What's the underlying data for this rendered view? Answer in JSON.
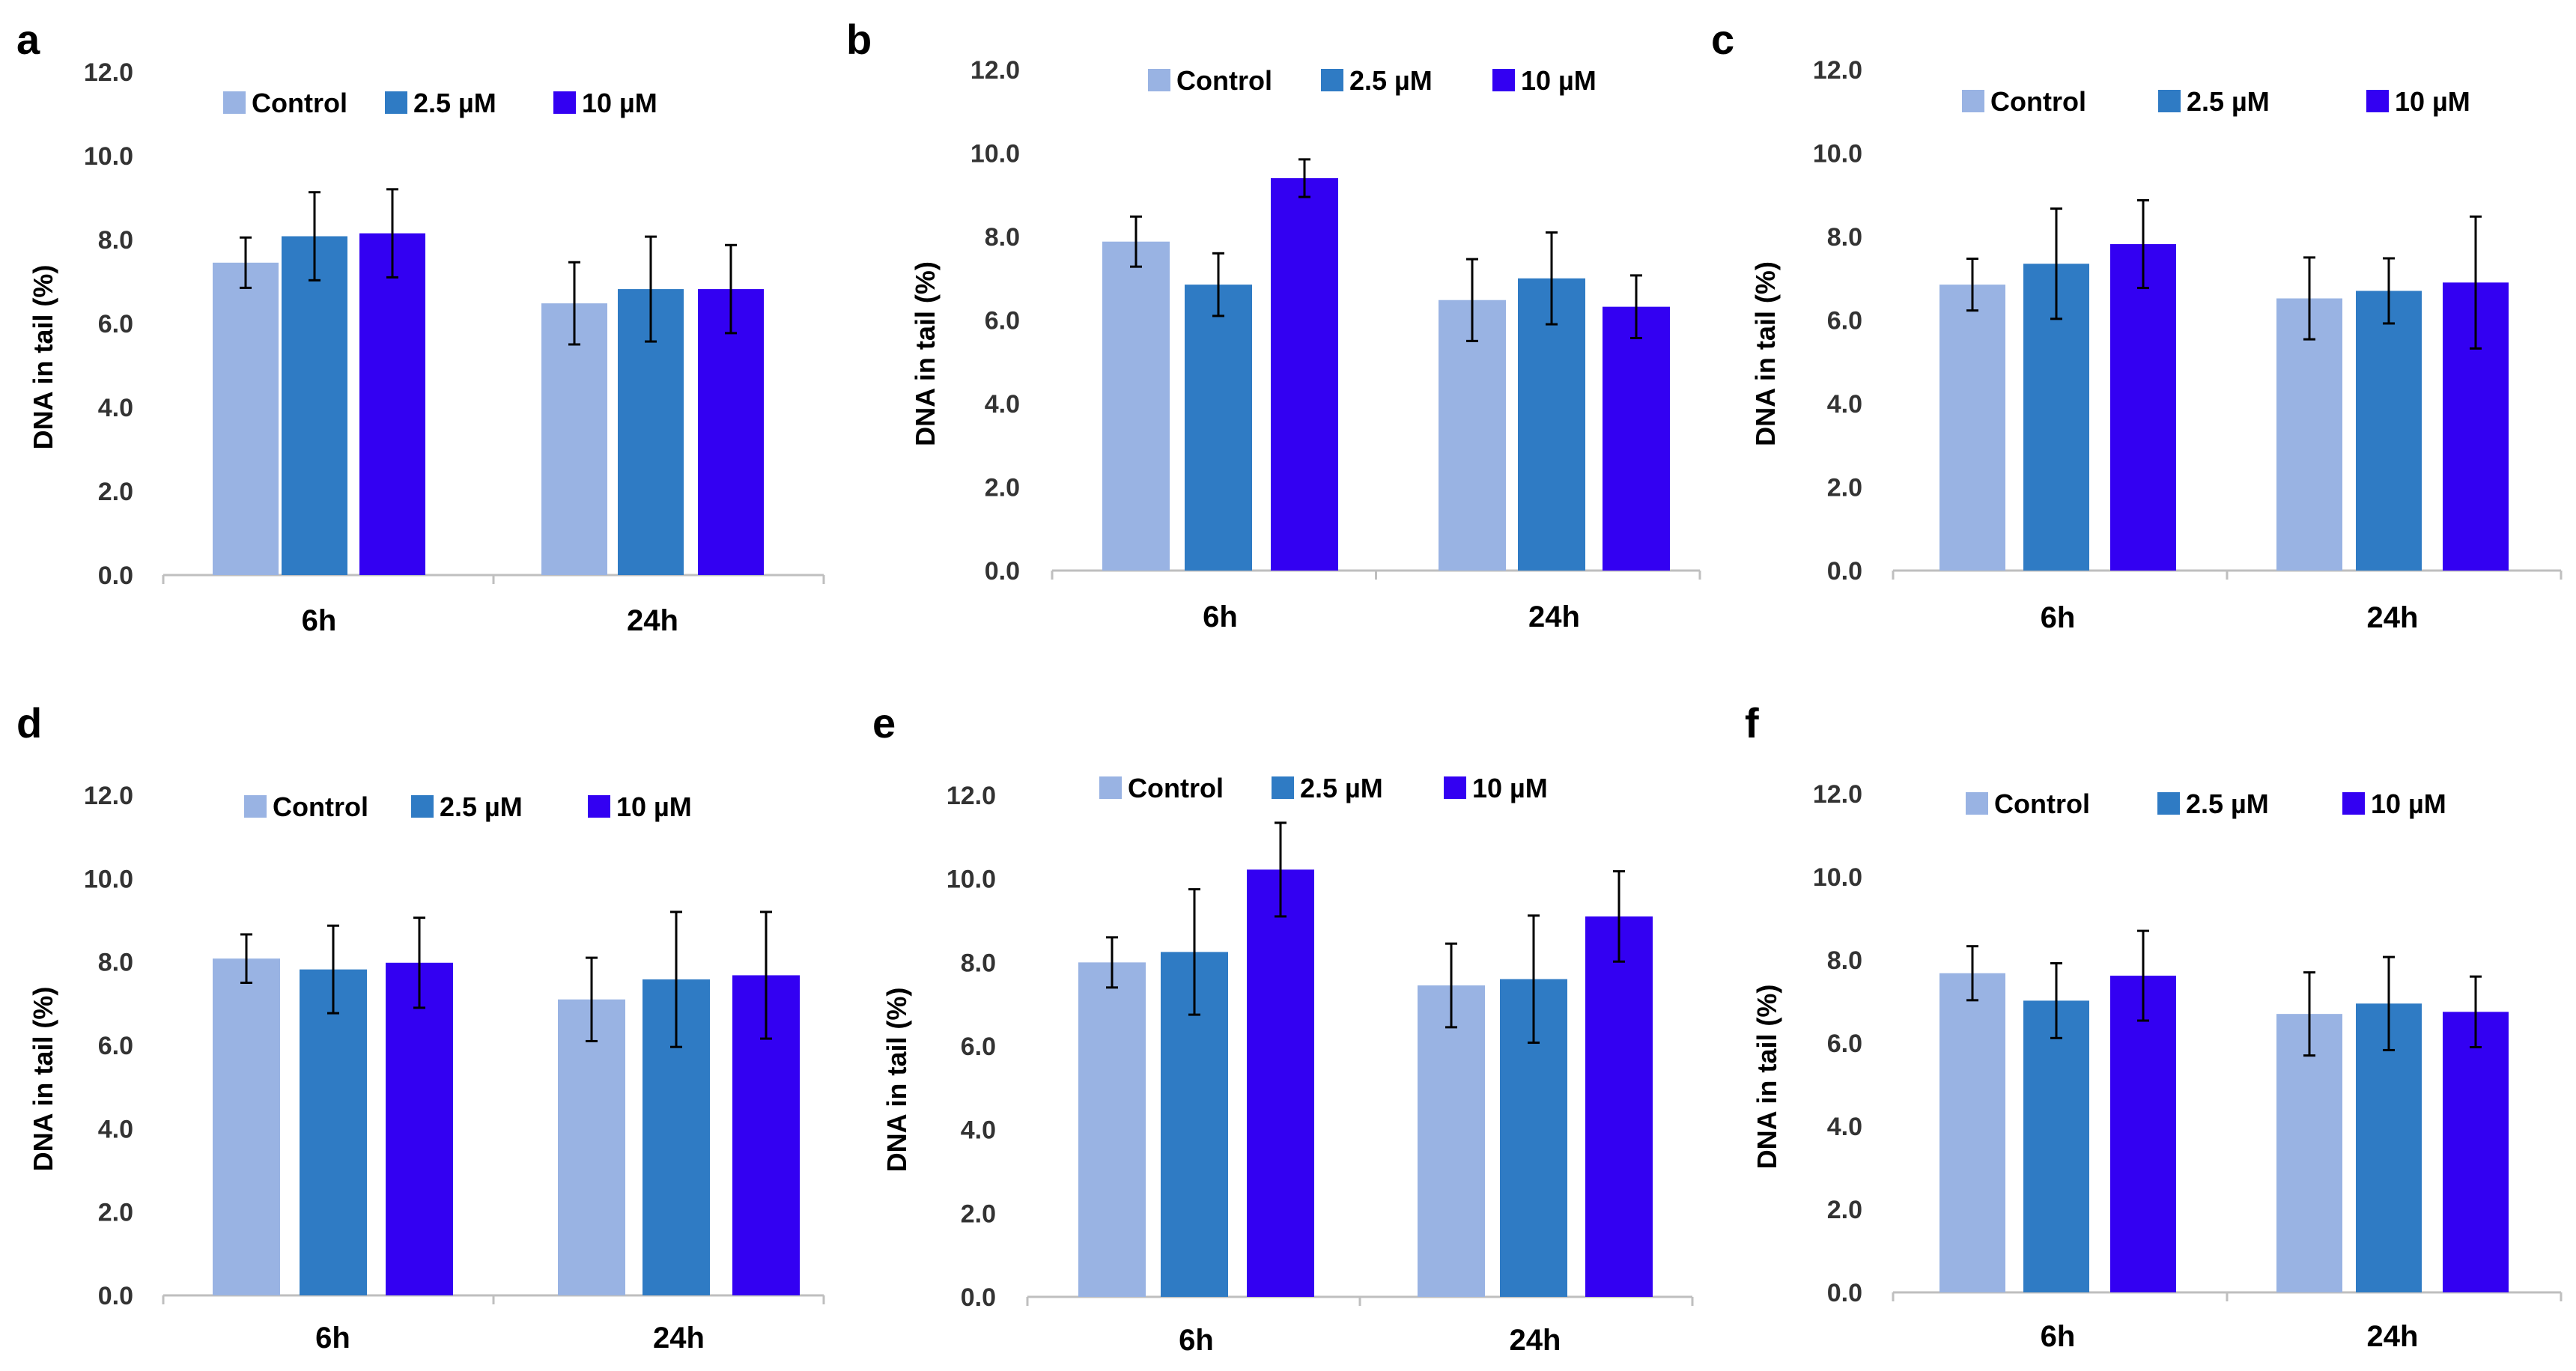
{
  "legend_labels": [
    "Control",
    "2.5 µM",
    "10 µM"
  ],
  "colors": {
    "control": "#99B3E3",
    "mid": "#2F7BC4",
    "high": "#3300F2",
    "axis": "#bfbfbf"
  },
  "chart_data": [
    {
      "panel": "a",
      "type": "bar",
      "ylabel": "DNA in tail (%)",
      "ylim": [
        0,
        12
      ],
      "yticks": [
        "0.0",
        "2.0",
        "4.0",
        "6.0",
        "8.0",
        "10.0",
        "12.0"
      ],
      "categories": [
        "6h",
        "24h"
      ],
      "series": [
        {
          "name": "Control",
          "values": [
            7.45,
            6.48
          ],
          "errors": [
            0.6,
            0.98
          ]
        },
        {
          "name": "2.5 µM",
          "values": [
            8.08,
            6.82
          ],
          "errors": [
            1.05,
            1.25
          ]
        },
        {
          "name": "10 µM",
          "values": [
            8.15,
            6.82
          ],
          "errors": [
            1.05,
            1.05
          ]
        }
      ]
    },
    {
      "panel": "b",
      "type": "bar",
      "ylabel": "DNA in tail (%)",
      "ylim": [
        0,
        12
      ],
      "yticks": [
        "0.0",
        "2.0",
        "4.0",
        "6.0",
        "8.0",
        "10.0",
        "12.0"
      ],
      "categories": [
        "6h",
        "24h"
      ],
      "series": [
        {
          "name": "Control",
          "values": [
            7.88,
            6.48
          ],
          "errors": [
            0.6,
            0.98
          ]
        },
        {
          "name": "2.5 µM",
          "values": [
            6.85,
            7.0
          ],
          "errors": [
            0.75,
            1.1
          ]
        },
        {
          "name": "10 µM",
          "values": [
            9.4,
            6.32
          ],
          "errors": [
            0.45,
            0.75
          ]
        }
      ]
    },
    {
      "panel": "c",
      "type": "bar",
      "ylabel": "DNA in tail (%)",
      "ylim": [
        0,
        12
      ],
      "yticks": [
        "0.0",
        "2.0",
        "4.0",
        "6.0",
        "8.0",
        "10.0",
        "12.0"
      ],
      "categories": [
        "6h",
        "24h"
      ],
      "series": [
        {
          "name": "Control",
          "values": [
            6.85,
            6.52
          ],
          "errors": [
            0.62,
            0.98
          ]
        },
        {
          "name": "2.5 µM",
          "values": [
            7.35,
            6.7
          ],
          "errors": [
            1.32,
            0.78
          ]
        },
        {
          "name": "10 µM",
          "values": [
            7.82,
            6.9
          ],
          "errors": [
            1.05,
            1.58
          ]
        }
      ]
    },
    {
      "panel": "d",
      "type": "bar",
      "ylabel": "DNA in tail (%)",
      "ylim": [
        0,
        12
      ],
      "yticks": [
        "0.0",
        "2.0",
        "4.0",
        "6.0",
        "8.0",
        "10.0",
        "12.0"
      ],
      "categories": [
        "6h",
        "24h"
      ],
      "series": [
        {
          "name": "Control",
          "values": [
            8.08,
            7.1
          ],
          "errors": [
            0.58,
            1.0
          ]
        },
        {
          "name": "2.5 µM",
          "values": [
            7.82,
            7.58
          ],
          "errors": [
            1.05,
            1.62
          ]
        },
        {
          "name": "10 µM",
          "values": [
            7.98,
            7.68
          ],
          "errors": [
            1.08,
            1.52
          ]
        }
      ]
    },
    {
      "panel": "e",
      "type": "bar",
      "ylabel": "DNA in tail (%)",
      "ylim": [
        0,
        12
      ],
      "yticks": [
        "0.0",
        "2.0",
        "4.0",
        "6.0",
        "8.0",
        "10.0",
        "12.0"
      ],
      "categories": [
        "6h",
        "24h"
      ],
      "series": [
        {
          "name": "Control",
          "values": [
            8.0,
            7.45
          ],
          "errors": [
            0.6,
            1.0
          ]
        },
        {
          "name": "2.5 µM",
          "values": [
            8.25,
            7.6
          ],
          "errors": [
            1.5,
            1.52
          ]
        },
        {
          "name": "10 µM",
          "values": [
            10.22,
            9.1
          ],
          "errors": [
            1.12,
            1.08
          ]
        }
      ]
    },
    {
      "panel": "f",
      "type": "bar",
      "ylabel": "DNA in tail (%)",
      "ylim": [
        0,
        12
      ],
      "yticks": [
        "0.0",
        "2.0",
        "4.0",
        "6.0",
        "8.0",
        "10.0",
        "12.0"
      ],
      "categories": [
        "6h",
        "24h"
      ],
      "series": [
        {
          "name": "Control",
          "values": [
            7.68,
            6.7
          ],
          "errors": [
            0.65,
            1.0
          ]
        },
        {
          "name": "2.5 µM",
          "values": [
            7.02,
            6.95
          ],
          "errors": [
            0.9,
            1.12
          ]
        },
        {
          "name": "10 µM",
          "values": [
            7.62,
            6.75
          ],
          "errors": [
            1.08,
            0.85
          ]
        }
      ]
    }
  ]
}
